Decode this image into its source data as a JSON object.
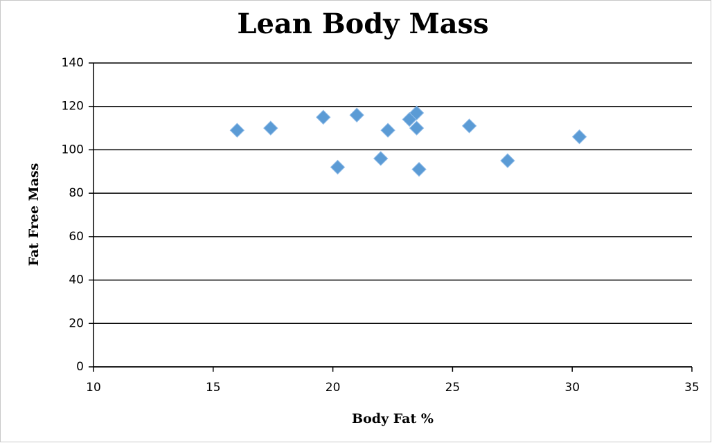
{
  "chart_data": {
    "type": "scatter",
    "title": "Lean Body Mass",
    "x_label": "Body Fat %",
    "y_label": "Fat Free Mass",
    "series": [
      {
        "name": "Fat Free Mass",
        "color": "#5b9bd5",
        "x": [
          16.0,
          17.4,
          19.6,
          20.2,
          21.0,
          22.0,
          22.3,
          23.2,
          23.5,
          23.5,
          23.6,
          25.7,
          27.3,
          30.3
        ],
        "values": [
          109,
          110,
          115,
          92,
          116,
          96,
          109,
          114,
          117,
          110,
          91,
          111,
          95,
          106
        ]
      }
    ],
    "xlim": [
      10,
      35
    ],
    "xticks": [
      10,
      15,
      20,
      25,
      30,
      35
    ],
    "ylim": [
      0,
      140
    ],
    "yticks": [
      0,
      20,
      40,
      60,
      80,
      100,
      120,
      140
    ],
    "grid": true
  }
}
